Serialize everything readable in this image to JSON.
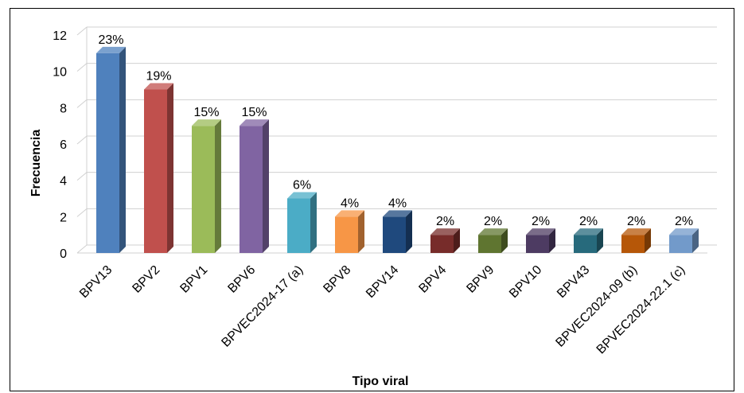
{
  "chart_data": {
    "type": "bar",
    "style": "3d-column",
    "xlabel": "Tipo viral",
    "ylabel": "Frecuencia",
    "ylim": [
      0,
      12
    ],
    "yticks": [
      "0",
      "2",
      "4",
      "6",
      "8",
      "10",
      "12"
    ],
    "grid": true,
    "legend": "none",
    "categories": [
      "BPV13",
      "BPV2",
      "BPV1",
      "BPV6",
      "BPVEC2024-17 (a)",
      "BPV8",
      "BPV14",
      "BPV4",
      "BPV9",
      "BPV10",
      "BPV43",
      "BPVEC2024-09 (b)",
      "BPVEC2024-22.1 (c)"
    ],
    "values": [
      11,
      9,
      7,
      7,
      3,
      2,
      2,
      1,
      1,
      1,
      1,
      1,
      1
    ],
    "data_labels": [
      "23%",
      "19%",
      "15%",
      "15%",
      "6%",
      "4%",
      "4%",
      "2%",
      "2%",
      "2%",
      "2%",
      "2%",
      "2%"
    ],
    "colors": [
      "#4F81BD",
      "#C0504D",
      "#9BBB59",
      "#8064A2",
      "#4BACC6",
      "#F79646",
      "#1F497D",
      "#772C2A",
      "#5F7530",
      "#4D3B62",
      "#276A7C",
      "#B65708",
      "#729ACA"
    ]
  }
}
